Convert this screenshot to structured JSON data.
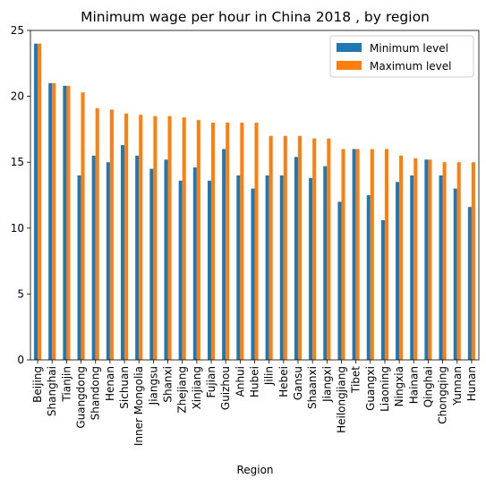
{
  "chart_data": {
    "type": "bar",
    "title": "Minimum wage per hour in China 2018 , by region",
    "xlabel": "Region",
    "ylabel": "",
    "ylim": [
      0,
      25
    ],
    "yticks": [
      0,
      5,
      10,
      15,
      20,
      25
    ],
    "grid": false,
    "legend_position": "top-right",
    "categories": [
      "Beijing",
      "Shanghai",
      "Tianjin",
      "Guangdong",
      "Shandong",
      "Henan",
      "Sichuan",
      "Inner Mongolia",
      "Jiangsu",
      "Shanxi",
      "Zhejiang",
      "Xinjiang",
      "Fujian",
      "Guizhou",
      "Anhui",
      "Hubei",
      "Jilin",
      "Hebei",
      "Gansu",
      "Shaanxi",
      "Jiangxi",
      "Heilongjiang",
      "Tibet",
      "Guangxi",
      "Liaoning",
      "Ningxia",
      "Hainan",
      "Qinghai",
      "Chongqing",
      "Yunnan",
      "Hunan"
    ],
    "series": [
      {
        "name": "Minimum level",
        "color": "#1f77b4",
        "values": [
          24,
          21,
          20.8,
          14,
          15.5,
          15,
          16.3,
          15.5,
          14.5,
          15.2,
          13.6,
          14.6,
          13.6,
          16,
          14,
          13,
          14,
          14,
          15.4,
          13.8,
          14.7,
          12,
          16,
          12.5,
          10.6,
          13.5,
          14,
          15.2,
          14,
          13,
          11.6
        ]
      },
      {
        "name": "Maximum level",
        "color": "#ff7f0e",
        "values": [
          24,
          21,
          20.8,
          20.3,
          19.1,
          19,
          18.7,
          18.6,
          18.5,
          18.5,
          18.4,
          18.2,
          18,
          18,
          18,
          18,
          17,
          17,
          17,
          16.8,
          16.8,
          16,
          16,
          16,
          16,
          15.5,
          15.3,
          15.2,
          15,
          15,
          15
        ]
      }
    ]
  }
}
